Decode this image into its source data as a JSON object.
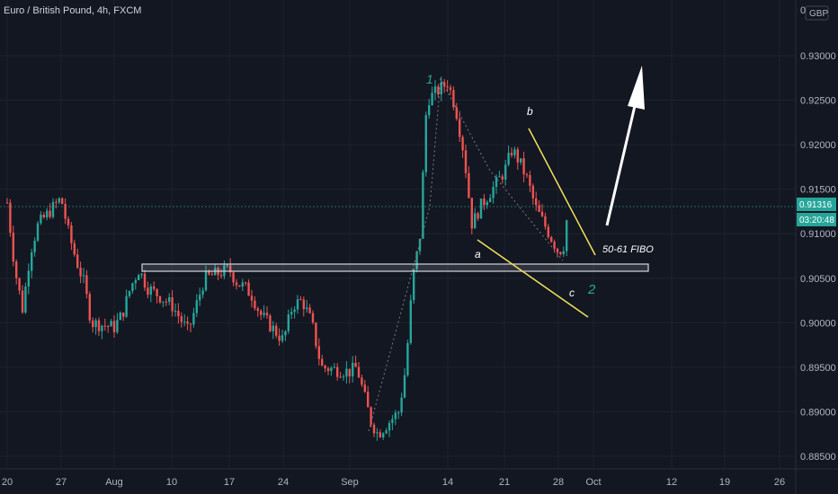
{
  "header": {
    "symbol_title": "Euro / British Pound, 4h, FXCM",
    "currency_badge": "GBP"
  },
  "price_label": {
    "value": "0.91316",
    "countdown": "03:20:48"
  },
  "colors": {
    "bg": "#131722",
    "up": "#26a69a",
    "down": "#ef5350",
    "zone": "#d1d4dc",
    "wedge": "#f2e15a",
    "wave": "#26a69a",
    "arrow": "#ffffff",
    "grid": "#1e222d",
    "axis_text": "#b2b5be",
    "price_line": "#26a69a"
  },
  "annotations": {
    "wave_1": "1",
    "wave_2": "2",
    "point_a": "a",
    "point_b": "b",
    "point_c": "c",
    "fibo_text": "50-61 FIBO"
  },
  "chart_data": {
    "type": "candlestick",
    "title": "Euro / British Pound, 4h, FXCM",
    "ylim": [
      0.8845,
      0.9315
    ],
    "yticks": [
      0.885,
      0.89,
      0.895,
      0.9,
      0.905,
      0.91,
      0.915,
      0.92,
      0.925,
      0.93
    ],
    "ytick_labels": [
      "0.88500",
      "0.89000",
      "0.89500",
      "0.90000",
      "0.90500",
      "0.91000",
      "0.91500",
      "0.92000",
      "0.92500",
      "0.93000"
    ],
    "ytick_top_partial": "0",
    "xtick_labels": [
      "20",
      "27",
      "Aug",
      "10",
      "17",
      "24",
      "Sep",
      "14",
      "21",
      "28",
      "Oct",
      "12",
      "19",
      "26"
    ],
    "current_price": 0.91316,
    "series_path": [
      [
        "2020-07-20",
        0.9135
      ],
      [
        "2020-07-21",
        0.906
      ],
      [
        "2020-07-22",
        0.9015
      ],
      [
        "2020-07-23",
        0.908
      ],
      [
        "2020-07-24",
        0.911
      ],
      [
        "2020-07-27",
        0.914
      ],
      [
        "2020-07-28",
        0.91
      ],
      [
        "2020-07-29",
        0.907
      ],
      [
        "2020-07-30",
        0.9045
      ],
      [
        "2020-07-31",
        0.9
      ],
      [
        "2020-08-03",
        0.8995
      ],
      [
        "2020-08-04",
        0.901
      ],
      [
        "2020-08-05",
        0.904
      ],
      [
        "2020-08-06",
        0.906
      ],
      [
        "2020-08-07",
        0.904
      ],
      [
        "2020-08-10",
        0.902
      ],
      [
        "2020-08-11",
        0.9005
      ],
      [
        "2020-08-12",
        0.899
      ],
      [
        "2020-08-13",
        0.902
      ],
      [
        "2020-08-14",
        0.905
      ],
      [
        "2020-08-17",
        0.906
      ],
      [
        "2020-08-18",
        0.9045
      ],
      [
        "2020-08-19",
        0.904
      ],
      [
        "2020-08-20",
        0.903
      ],
      [
        "2020-08-21",
        0.901
      ],
      [
        "2020-08-24",
        0.898
      ],
      [
        "2020-08-25",
        0.902
      ],
      [
        "2020-08-26",
        0.9025
      ],
      [
        "2020-08-27",
        0.9
      ],
      [
        "2020-08-28",
        0.895
      ],
      [
        "2020-08-31",
        0.8945
      ],
      [
        "2020-09-01",
        0.895
      ],
      [
        "2020-09-02",
        0.892
      ],
      [
        "2020-09-03",
        0.889
      ],
      [
        "2020-09-04",
        0.8875
      ],
      [
        "2020-09-07",
        0.89
      ],
      [
        "2020-09-08",
        0.895
      ],
      [
        "2020-09-09",
        0.905
      ],
      [
        "2020-09-10",
        0.9095
      ],
      [
        "2020-09-11",
        0.925
      ],
      [
        "2020-09-14",
        0.927
      ],
      [
        "2020-09-15",
        0.924
      ],
      [
        "2020-09-16",
        0.919
      ],
      [
        "2020-09-17",
        0.911
      ],
      [
        "2020-09-18",
        0.913
      ],
      [
        "2020-09-21",
        0.917
      ],
      [
        "2020-09-22",
        0.9195
      ],
      [
        "2020-09-23",
        0.918
      ],
      [
        "2020-09-24",
        0.916
      ],
      [
        "2020-09-25",
        0.913
      ],
      [
        "2020-09-28",
        0.908
      ],
      [
        "2020-09-29",
        0.9085
      ],
      [
        "2020-09-30",
        0.9131
      ]
    ]
  }
}
